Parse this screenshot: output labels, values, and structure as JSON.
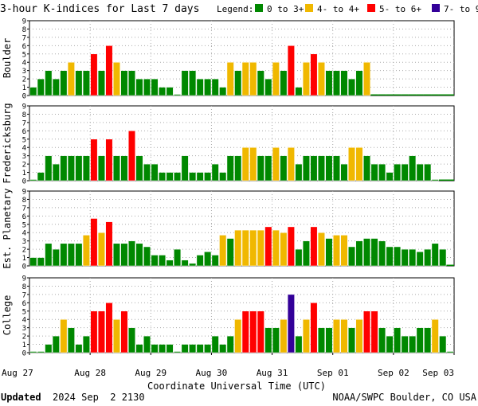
{
  "chart_data": {
    "type": "bar",
    "title": "3-hour K-indices for Last 7 days",
    "legend": {
      "label": "Legend:",
      "position": "top-right",
      "items": [
        {
          "label": "0 to 3+",
          "color": "#008800"
        },
        {
          "label": "4- to 4+",
          "color": "#f0b800"
        },
        {
          "label": "5- to 6+",
          "color": "#ff0000"
        },
        {
          "label": "7- to 9",
          "color": "#330099"
        }
      ]
    },
    "ylim": [
      0,
      9
    ],
    "yticks": [
      "0",
      "1",
      "2",
      "3",
      "4",
      "5",
      "6",
      "7",
      "8",
      "9"
    ],
    "grid": true,
    "xlabel": "Coordinate Universal Time (UTC)",
    "xticks": [
      "Aug 27",
      "Aug 28",
      "Aug 29",
      "Aug 30",
      "Aug 31",
      "Sep 01",
      "Sep 02",
      "Sep 03"
    ],
    "bins_per_day": 8,
    "missing_value": null,
    "series": [
      {
        "name": "Boulder",
        "values": [
          1,
          2,
          3,
          2,
          3,
          4,
          3,
          3,
          5,
          3,
          6,
          4,
          3,
          3,
          2,
          2,
          2,
          1,
          1,
          0,
          3,
          3,
          2,
          2,
          2,
          1,
          4,
          3,
          4,
          4,
          3,
          2,
          4,
          3,
          6,
          1,
          4,
          5,
          4,
          3,
          3,
          3,
          2,
          3,
          4,
          null,
          null,
          null,
          null,
          null,
          null,
          null,
          null,
          null,
          null,
          null
        ]
      },
      {
        "name": "Fredericksburg",
        "values": [
          0,
          1,
          3,
          2,
          3,
          3,
          3,
          3,
          5,
          3,
          5,
          3,
          3,
          6,
          3,
          2,
          2,
          1,
          1,
          1,
          3,
          1,
          1,
          1,
          2,
          1,
          3,
          3,
          4,
          4,
          3,
          3,
          4,
          3,
          4,
          2,
          3,
          3,
          3,
          3,
          3,
          2,
          4,
          4,
          3,
          2,
          2,
          1,
          2,
          2,
          3,
          2,
          2,
          0,
          null,
          null
        ]
      },
      {
        "name": "Est. Planetary",
        "values": [
          1,
          1,
          2.7,
          2,
          2.7,
          2.7,
          2.7,
          3.7,
          5.7,
          4,
          5.3,
          2.7,
          2.7,
          3,
          2.7,
          2.3,
          1.3,
          1.3,
          0.7,
          2,
          0.7,
          0.3,
          1.3,
          1.7,
          1.3,
          3.7,
          3.3,
          4.3,
          4.3,
          4.3,
          4.3,
          4.7,
          4.3,
          4,
          4.7,
          2,
          3,
          4.7,
          4,
          3.3,
          3.7,
          3.7,
          2.3,
          3,
          3.3,
          3.3,
          3,
          2.3,
          2.3,
          2,
          2,
          1.7,
          2,
          2.7,
          2,
          null
        ]
      },
      {
        "name": "College",
        "values": [
          0,
          0,
          1,
          2,
          4,
          3,
          1,
          2,
          5,
          5,
          6,
          4,
          5,
          3,
          1,
          2,
          1,
          1,
          1,
          0,
          1,
          1,
          1,
          1,
          2,
          1,
          2,
          4,
          5,
          5,
          5,
          3,
          3,
          4,
          7,
          2,
          4,
          6,
          3,
          3,
          4,
          4,
          3,
          4,
          5,
          5,
          3,
          2,
          3,
          2,
          2,
          3,
          3,
          4,
          2,
          0
        ]
      }
    ]
  },
  "footer": {
    "updated_label": "Updated",
    "updated_time": "2024 Sep  2 2130",
    "credit": "NOAA/SWPC Boulder, CO USA"
  }
}
